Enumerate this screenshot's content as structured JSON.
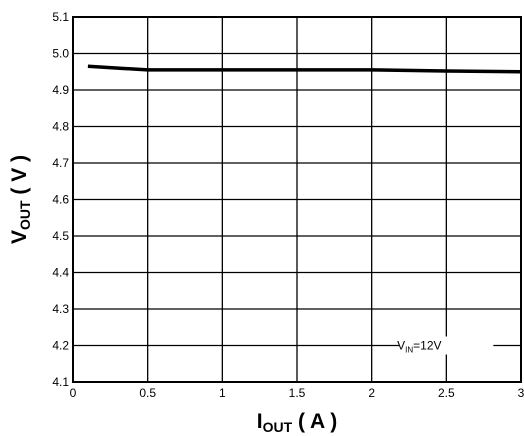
{
  "chart_data": {
    "type": "line",
    "xlabel": {
      "main": "I",
      "sub": "OUT",
      "rest": " ( A )"
    },
    "ylabel": {
      "main": "V",
      "sub": "OUT",
      "rest": " ( V )"
    },
    "xlim": [
      0,
      3
    ],
    "ylim": [
      4.1,
      5.1
    ],
    "xticks": [
      0,
      0.5,
      1,
      1.5,
      2,
      2.5,
      3
    ],
    "xtick_labels": [
      "0",
      "0.5",
      "1",
      "1.5",
      "2",
      "2.5",
      "3"
    ],
    "yticks": [
      4.1,
      4.2,
      4.3,
      4.4,
      4.5,
      4.6,
      4.7,
      4.8,
      4.9,
      5.0,
      5.1
    ],
    "ytick_labels": [
      "4.1",
      "4.2",
      "4.3",
      "4.4",
      "4.5",
      "4.6",
      "4.7",
      "4.8",
      "4.9",
      "5.0",
      "5.1"
    ],
    "grid": true,
    "annotation": {
      "main": "V",
      "sub": "IN",
      "rest": "=12V",
      "x": 2.5,
      "y": 4.2
    },
    "series": [
      {
        "x": [
          0.1,
          0.3,
          0.5,
          1.0,
          1.5,
          2.0,
          2.5,
          3.0
        ],
        "values": [
          4.965,
          4.96,
          4.955,
          4.955,
          4.955,
          4.955,
          4.952,
          4.95
        ]
      }
    ]
  }
}
